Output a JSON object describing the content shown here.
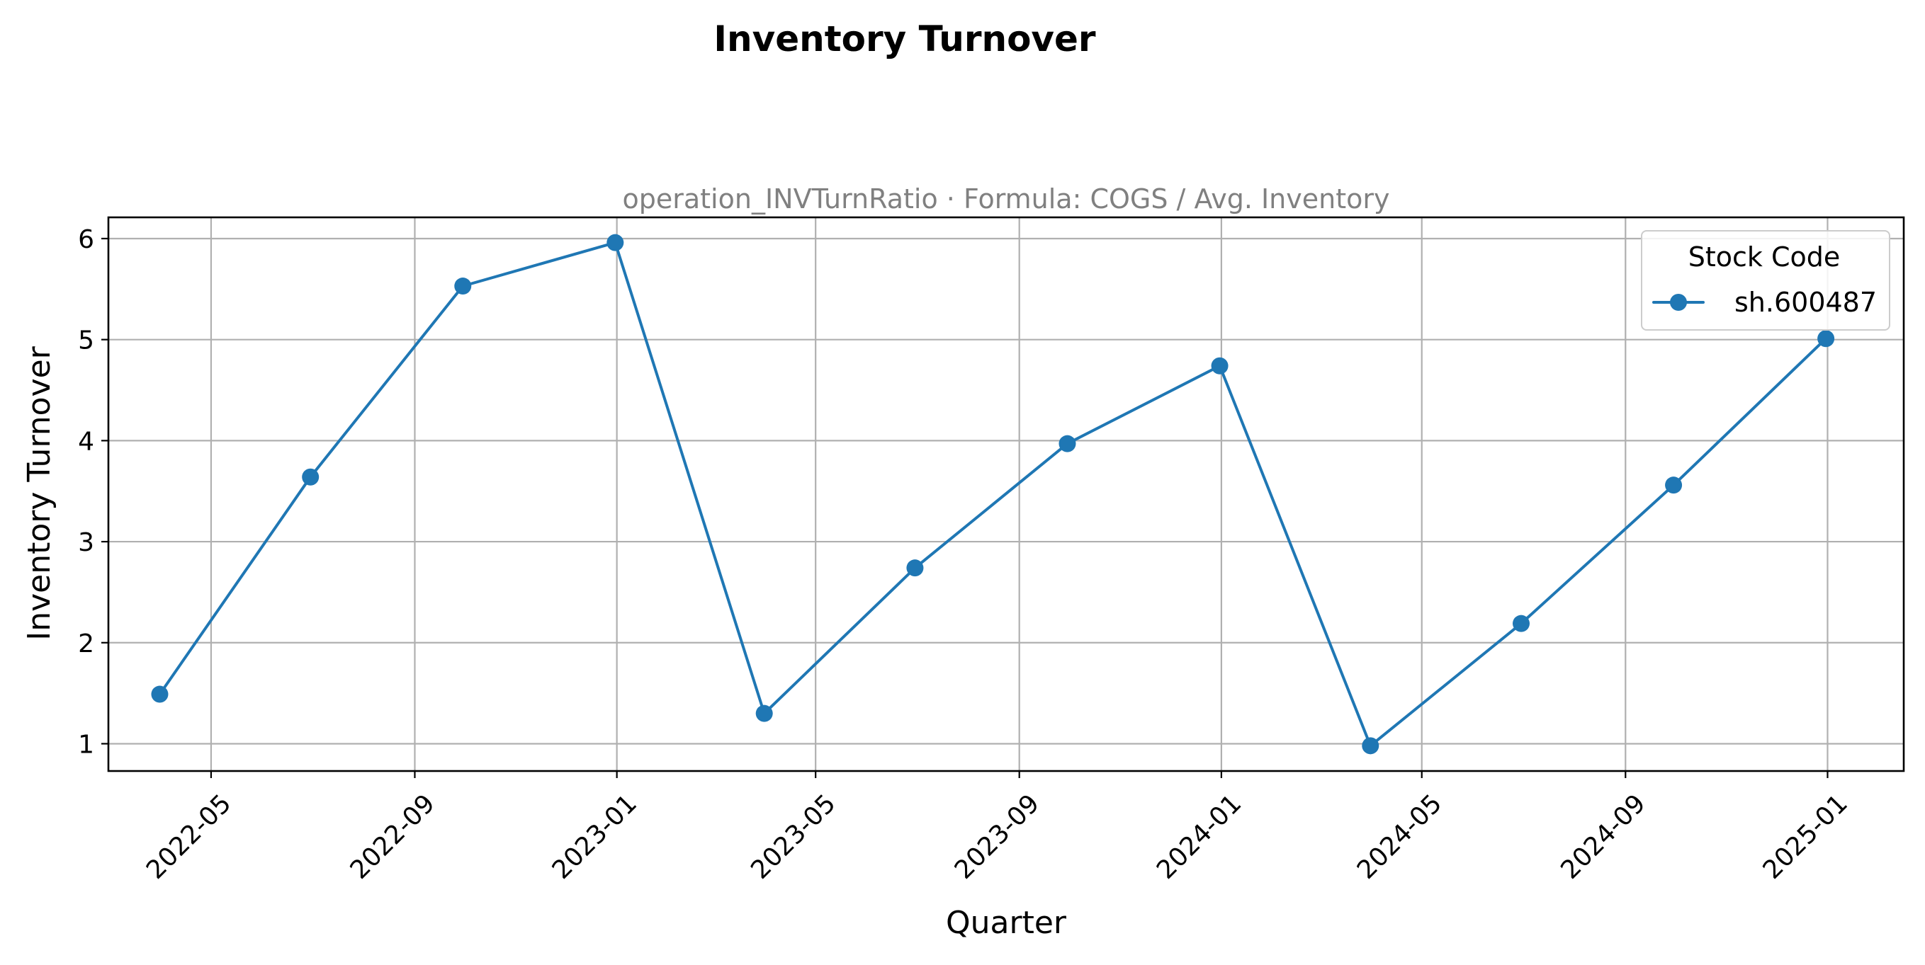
{
  "figure": {
    "title": "Inventory Turnover"
  },
  "chart_data": {
    "type": "line",
    "title": "Inventory Turnover",
    "subtitle": "operation_INVTurnRatio · Formula: COGS / Avg. Inventory",
    "xlabel": "Quarter",
    "ylabel": "Inventory Turnover",
    "x_tick_labels": [
      "2022-05",
      "2022-09",
      "2023-01",
      "2023-05",
      "2023-09",
      "2024-01",
      "2024-05",
      "2024-09",
      "2025-01"
    ],
    "y_tick_labels": [
      "1",
      "2",
      "3",
      "4",
      "5",
      "6"
    ],
    "ylim": [
      0.73,
      6.21
    ],
    "xlim": [
      "2022-02-28",
      "2025-02-16"
    ],
    "grid": true,
    "legend": {
      "title": "Stock Code",
      "position": "top-right"
    },
    "series": [
      {
        "name": "sh.600487",
        "color": "#1f77b4",
        "marker": "circle",
        "x": [
          "2022-03-31",
          "2022-06-30",
          "2022-09-30",
          "2022-12-31",
          "2023-03-31",
          "2023-06-30",
          "2023-09-30",
          "2023-12-31",
          "2024-03-31",
          "2024-06-30",
          "2024-09-30",
          "2024-12-31"
        ],
        "y": [
          1.49,
          3.64,
          5.53,
          5.96,
          1.3,
          2.74,
          3.97,
          4.74,
          0.98,
          2.19,
          3.56,
          5.01
        ]
      }
    ]
  }
}
